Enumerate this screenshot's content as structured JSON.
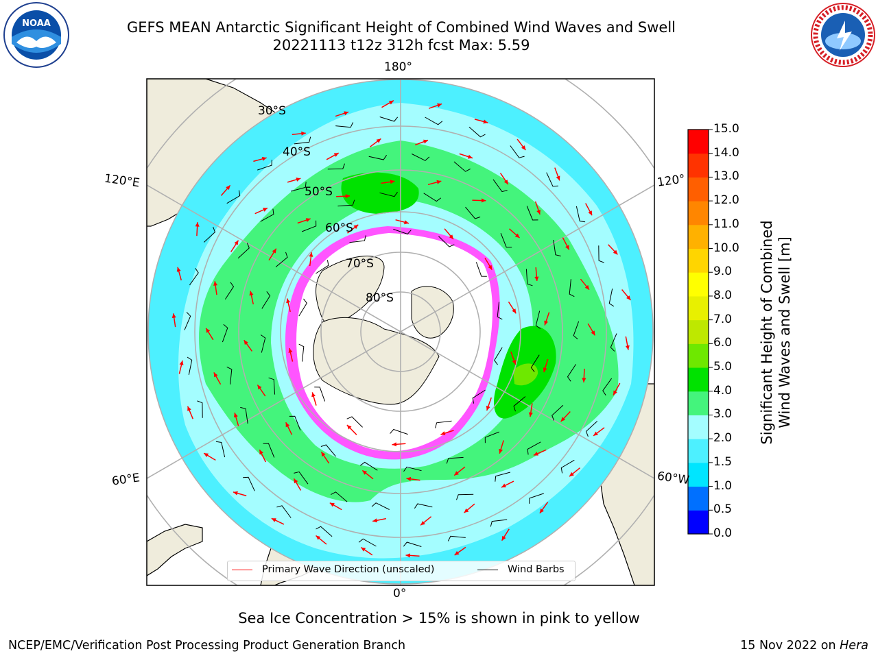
{
  "title": {
    "line1": "GEFS MEAN Antarctic Significant Height of Combined Wind Waves and Swell",
    "line2": "20221113 t12z 312h fcst   Max: 5.59"
  },
  "logos": {
    "left": {
      "name": "noaa-logo",
      "text": "NOAA"
    },
    "right": {
      "name": "nws-logo"
    }
  },
  "map": {
    "projection": "south polar stereographic",
    "lon_labels": {
      "top": "180°",
      "bottom": "0°",
      "left_upper": "120°E",
      "left_lower": "60°E",
      "right_upper": "120°",
      "right_lower": "60°W"
    },
    "lat_labels": [
      "30°S",
      "40°S",
      "50°S",
      "60°S",
      "70°S",
      "80°S"
    ]
  },
  "legend": {
    "wave_direction": "Primary Wave Direction (unscaled)",
    "wind_barbs": "Wind Barbs",
    "wave_color": "#ff0000",
    "barb_color": "#000000"
  },
  "colorbar": {
    "title_line1": "Significant Height of Combined",
    "title_line2": "Wind Waves and Swell [m]",
    "ticks": [
      "15.0",
      "14.0",
      "13.0",
      "12.0",
      "11.0",
      "10.0",
      "9.0",
      "8.0",
      "7.0",
      "6.0",
      "5.0",
      "4.0",
      "3.0",
      "2.0",
      "1.5",
      "1.0",
      "0.5",
      "0.0"
    ],
    "colors": [
      "#0000ff",
      "#0070ff",
      "#00e5ff",
      "#4df0ff",
      "#a4fdff",
      "#44f47c",
      "#00e200",
      "#6ee800",
      "#bee800",
      "#e8f000",
      "#ffff00",
      "#ffd500",
      "#ffb100",
      "#ff8600",
      "#ff5f00",
      "#ff3300",
      "#ff0000"
    ]
  },
  "sea_ice_note": "Sea Ice Concentration > 15% is shown in pink to yellow",
  "footer": {
    "left": "NCEP/EMC/Verification Post Processing Product Generation Branch",
    "right_date": "15 Nov 2022 on ",
    "right_host": "Hera"
  }
}
